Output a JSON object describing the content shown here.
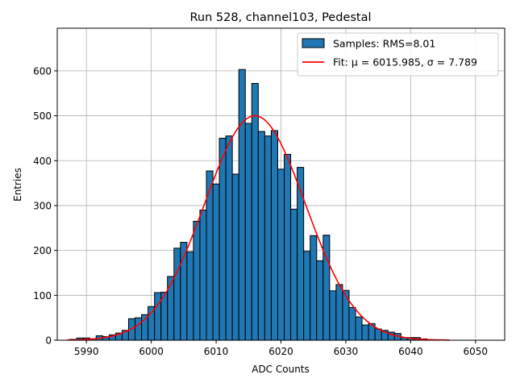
{
  "chart_data": {
    "type": "bar",
    "title": "Run 528, channel103, Pedestal",
    "xlabel": "ADC Counts",
    "ylabel": "Entries",
    "xlim": [
      5985.5,
      6054.5
    ],
    "ylim": [
      0,
      695
    ],
    "xticks": [
      5990,
      6000,
      6010,
      6020,
      6030,
      6040,
      6050
    ],
    "yticks": [
      0,
      100,
      200,
      300,
      400,
      500,
      600
    ],
    "grid": true,
    "legend_position": "upper right",
    "histogram": {
      "name": "Samples: RMS=8.01",
      "color": "#1f77b4",
      "bin_edges_start": 5987.5,
      "bin_width": 1,
      "counts": [
        2,
        5,
        5,
        3,
        10,
        8,
        12,
        16,
        22,
        48,
        50,
        57,
        75,
        106,
        107,
        142,
        205,
        218,
        197,
        265,
        290,
        377,
        348,
        450,
        455,
        370,
        603,
        483,
        572,
        465,
        455,
        467,
        381,
        414,
        292,
        385,
        198,
        233,
        177,
        234,
        110,
        124,
        111,
        73,
        52,
        34,
        37,
        25,
        22,
        18,
        15,
        6,
        6,
        6,
        3,
        1,
        1,
        1
      ]
    },
    "fit": {
      "name": "Fit: μ = 6015.985, σ = 7.789",
      "color": "#ff0000",
      "mu": 6015.985,
      "sigma": 7.789,
      "amplitude": 500,
      "x_range": [
        5987,
        6046
      ]
    }
  }
}
